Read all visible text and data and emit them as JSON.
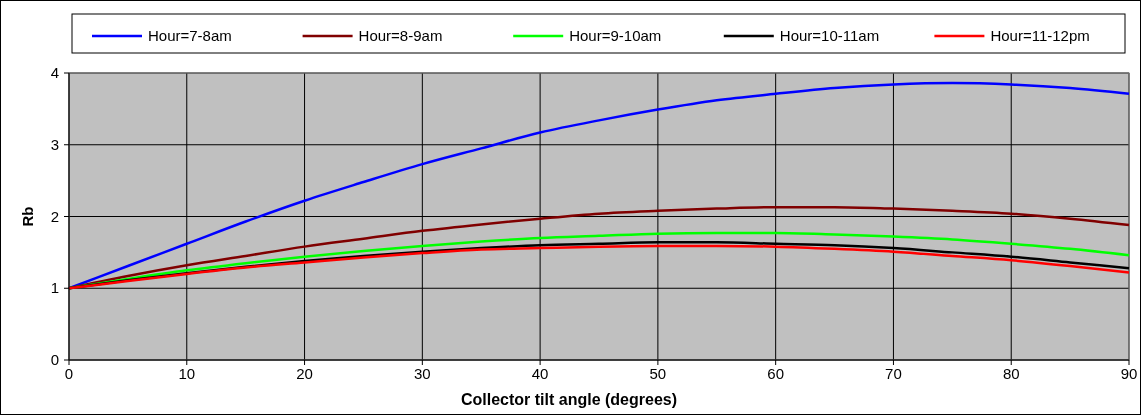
{
  "chart_data": {
    "type": "line",
    "xlabel": "Collector tilt angle (degrees)",
    "ylabel": "Rb",
    "x": [
      0,
      5,
      10,
      15,
      20,
      25,
      30,
      35,
      40,
      45,
      50,
      55,
      60,
      65,
      70,
      75,
      80,
      85,
      90
    ],
    "xlim": [
      0,
      90
    ],
    "xticks": [
      0,
      10,
      20,
      30,
      40,
      50,
      60,
      70,
      80,
      90
    ],
    "ylim": [
      0,
      4
    ],
    "yticks": [
      0,
      1,
      2,
      3,
      4
    ],
    "grid": true,
    "legend": "top",
    "line_style": "solid",
    "series": [
      {
        "name": "Hour=7-8am",
        "color": "#0000ff",
        "values": [
          1,
          1.31,
          1.62,
          1.93,
          2.22,
          2.48,
          2.73,
          2.95,
          3.17,
          3.34,
          3.49,
          3.62,
          3.71,
          3.79,
          3.84,
          3.86,
          3.84,
          3.79,
          3.71
        ]
      },
      {
        "name": "Hour=8-9am",
        "color": "#800000",
        "values": [
          1,
          1.17,
          1.32,
          1.45,
          1.58,
          1.69,
          1.8,
          1.89,
          1.97,
          2.04,
          2.08,
          2.11,
          2.13,
          2.13,
          2.11,
          2.08,
          2.04,
          1.97,
          1.88
        ]
      },
      {
        "name": "Hour=9-10am",
        "color": "#00ff00",
        "values": [
          1,
          1.13,
          1.25,
          1.35,
          1.44,
          1.52,
          1.59,
          1.65,
          1.7,
          1.73,
          1.76,
          1.77,
          1.77,
          1.75,
          1.72,
          1.68,
          1.62,
          1.55,
          1.46
        ]
      },
      {
        "name": "Hour=10-11am",
        "color": "#000000",
        "values": [
          1,
          1.11,
          1.21,
          1.3,
          1.38,
          1.45,
          1.51,
          1.56,
          1.6,
          1.62,
          1.64,
          1.64,
          1.62,
          1.6,
          1.56,
          1.5,
          1.44,
          1.36,
          1.28
        ]
      },
      {
        "name": "Hour=11-12pm",
        "color": "#ff0000",
        "values": [
          1,
          1.1,
          1.2,
          1.29,
          1.36,
          1.43,
          1.49,
          1.54,
          1.56,
          1.58,
          1.59,
          1.59,
          1.58,
          1.55,
          1.51,
          1.45,
          1.39,
          1.31,
          1.22
        ]
      }
    ]
  }
}
